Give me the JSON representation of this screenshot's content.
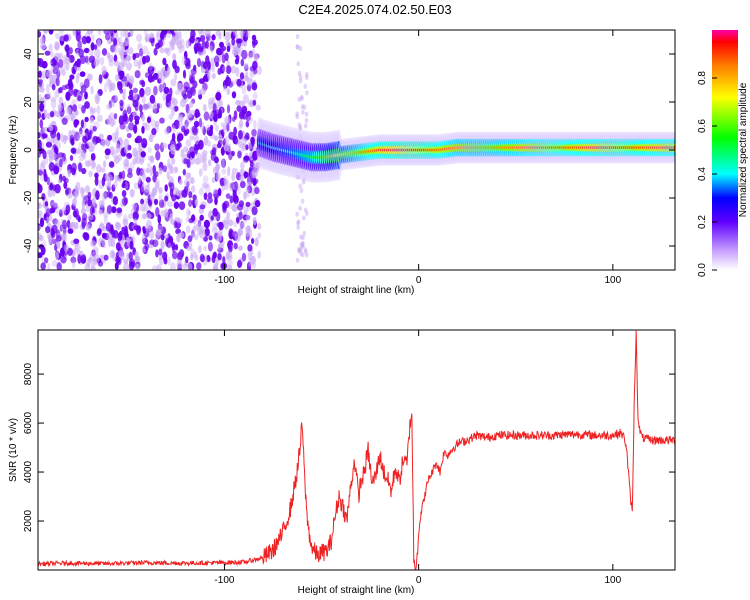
{
  "title": "C2E4.2025.074.02.50.E03",
  "colors": {
    "snr_line": "#ee2222",
    "noise_dot_dark": "#6a00ee",
    "noise_dot_light": "#c9a8f5",
    "frame": "#000000"
  },
  "chart_data": [
    {
      "type": "heatmap",
      "subtype": "spectrogram",
      "xlabel": "Height of straight line (km)",
      "ylabel": "Frequency (Hz)",
      "xlim": [
        -196,
        132
      ],
      "ylim": [
        -50,
        50
      ],
      "xticks": [
        -100,
        0,
        100
      ],
      "xtick_labels": [
        "-100",
        "0",
        "100"
      ],
      "yticks": [
        -40,
        -20,
        0,
        20,
        40
      ],
      "ytick_labels": [
        "-40",
        "-20",
        "0",
        "20",
        "40"
      ],
      "colorbar": {
        "label": "Normalized spectral amplitude",
        "range": [
          0,
          1
        ],
        "ticks": [
          0.0,
          0.2,
          0.4,
          0.6,
          0.8
        ],
        "tick_labels": [
          "0.0",
          "0.2",
          "0.4",
          "0.6",
          "0.8"
        ],
        "colormap": "rainbow"
      },
      "noise_region_x": [
        -196,
        -82
      ],
      "signal_ridge": {
        "x": [
          -82,
          -75,
          -65,
          -55,
          -48,
          -40,
          -30,
          -20,
          -12,
          -5,
          0,
          10,
          20,
          40,
          60,
          80,
          100,
          120,
          132
        ],
        "freq": [
          3,
          1,
          -1,
          -3,
          -3,
          -2,
          -1,
          0,
          0,
          0,
          0,
          0,
          1,
          1,
          1,
          1,
          1,
          1,
          1
        ],
        "amplitude": [
          0.35,
          0.4,
          0.45,
          0.5,
          0.6,
          0.75,
          0.85,
          0.92,
          0.95,
          0.95,
          0.95,
          0.9,
          0.85,
          0.85,
          0.88,
          0.9,
          0.92,
          0.9,
          0.9
        ]
      }
    },
    {
      "type": "line",
      "xlabel": "Height of straight line (km)",
      "ylabel": "SNR (10 * v/v)",
      "xlim": [
        -196,
        132
      ],
      "ylim": [
        0,
        9800
      ],
      "xticks": [
        -100,
        0,
        100
      ],
      "xtick_labels": [
        "-100",
        "0",
        "100"
      ],
      "yticks": [
        2000,
        4000,
        6000,
        8000
      ],
      "ytick_labels": [
        "2000",
        "4000",
        "6000",
        "8000"
      ],
      "series": [
        {
          "x": [
            -196,
            -180,
            -160,
            -140,
            -120,
            -100,
            -90,
            -80,
            -75,
            -70,
            -66,
            -63,
            -61,
            -60,
            -59,
            -58,
            -57,
            -55,
            -52,
            -50,
            -47,
            -45,
            -43,
            -41,
            -39,
            -37,
            -35,
            -33,
            -32,
            -31,
            -30,
            -28,
            -26,
            -24,
            -22,
            -20,
            -18,
            -16,
            -14,
            -12,
            -10,
            -8,
            -6,
            -5,
            -4,
            -3.5,
            -3,
            -2.5,
            -2,
            -1,
            0,
            1,
            2,
            3,
            5,
            7,
            9,
            11,
            13,
            15,
            18,
            21,
            25,
            30,
            35,
            40,
            50,
            60,
            70,
            80,
            90,
            100,
            104,
            106,
            107,
            108,
            109,
            110,
            110.5,
            111,
            111.5,
            112,
            113,
            115,
            120,
            125,
            132
          ],
          "values": [
            250,
            280,
            260,
            300,
            280,
            300,
            320,
            500,
            800,
            1500,
            2500,
            3800,
            5000,
            6000,
            4200,
            2800,
            1800,
            900,
            600,
            700,
            800,
            1200,
            2200,
            3000,
            2600,
            2000,
            3400,
            4500,
            3800,
            3000,
            3500,
            4000,
            4900,
            3500,
            3900,
            4700,
            4000,
            3700,
            3200,
            4200,
            3600,
            4500,
            4300,
            5500,
            6200,
            6500,
            3500,
            500,
            50,
            500,
            1500,
            2200,
            2600,
            3000,
            3700,
            4000,
            4400,
            4000,
            4800,
            4700,
            5000,
            5200,
            5300,
            5500,
            5400,
            5500,
            5500,
            5500,
            5500,
            5550,
            5500,
            5500,
            5600,
            5400,
            5000,
            4000,
            3000,
            2300,
            4500,
            6800,
            8300,
            9800,
            6000,
            5400,
            5300,
            5300,
            5300
          ]
        }
      ]
    }
  ]
}
